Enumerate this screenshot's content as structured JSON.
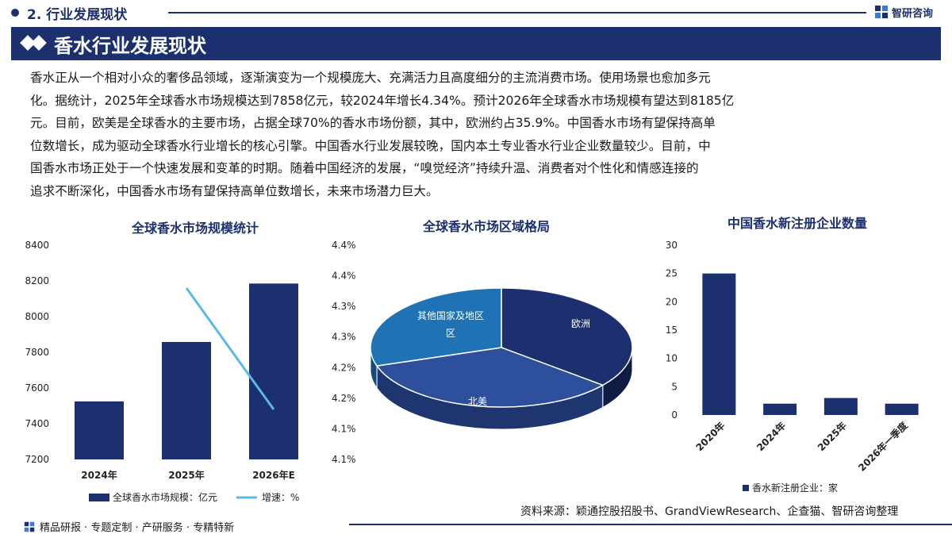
{
  "header": {
    "section": "2. 行业发展现状",
    "brand": "智研咨询",
    "title": "香水行业发展现状"
  },
  "paragraph_lines": [
    "香水正从一个相对小众的奢侈品领域，逐渐演变为一个规模庞大、充满活力且高度细分的主流消费市场。使用场景也愈加多元",
    "化。据统计，2025年全球香水市场规模达到7858亿元，较2024年增长4.34%。预计2026年全球香水市场规模有望达到8185亿",
    "元。目前，欧美是全球香水的主要市场，占据全球70%的香水市场份额，其中，欧洲约占35.9%。中国香水市场有望保持高单",
    "位数增长，成为驱动全球香水行业增长的核心引擎。中国香水行业发展较晚，国内本土专业香水行业企业数量较少。目前，中",
    "国香水市场正处于一个快速发展和变革的时期。随着中国经济的发展，“嗅觉经济”持续升温、消费者对个性化和情感连接的",
    "追求不断深化，中国香水市场有望保持高单位数增长，未来市场潜力巨大。"
  ],
  "chart_data": [
    {
      "type": "bar",
      "title": "全球香水市场规模统计",
      "categories": [
        "2024年",
        "2025年",
        "2026年E"
      ],
      "series": [
        {
          "name": "全球香水市场规模：亿元",
          "type": "bar",
          "axis": "left",
          "values": [
            7525,
            7858,
            8185
          ],
          "color": "#1c2f6e"
        },
        {
          "name": "增速：%",
          "type": "line",
          "axis": "right",
          "values": [
            null,
            4.34,
            4.17
          ],
          "color": "#5bb8e8"
        }
      ],
      "y_left": {
        "min": 7200,
        "max": 8400,
        "ticks": [
          "7200",
          "7400",
          "7600",
          "7800",
          "8000",
          "8200",
          "8400"
        ]
      },
      "y_right": {
        "min": 4.1,
        "max": 4.4,
        "ticks": [
          "4.1%",
          "4.1%",
          "4.2%",
          "4.2%",
          "4.3%",
          "4.3%",
          "4.4%",
          "4.4%"
        ]
      },
      "legend_position": "bottom"
    },
    {
      "type": "pie",
      "title": "全球香水市场区域格局",
      "labels": [
        "欧洲",
        "北美",
        "其他国家及地区"
      ],
      "label_lines": [
        [
          "欧洲"
        ],
        [
          "北美"
        ],
        [
          "其他国家及地区",
          "区"
        ]
      ],
      "values": [
        35.9,
        34.1,
        30.0
      ],
      "colors": [
        "#1c2f6e",
        "#2e4f9c",
        "#1f73b4"
      ]
    },
    {
      "type": "bar",
      "title": "中国香水新注册企业数量",
      "categories": [
        "2020年",
        "2024年",
        "2025年",
        "2026年一季度"
      ],
      "series": [
        {
          "name": "香水新注册企业：家",
          "values": [
            25,
            2,
            3,
            2
          ],
          "color": "#1c2f6e"
        }
      ],
      "y": {
        "min": 0,
        "max": 30,
        "ticks": [
          "0",
          "5",
          "10",
          "15",
          "20",
          "25",
          "30"
        ]
      },
      "legend_position": "bottom"
    }
  ],
  "footer": {
    "tagline": "精品研报 · 专题定制 · 产研服务 · 专精特新",
    "source": "资料来源：颖通控股招股书、GrandViewResearch、企查猫、智研咨询整理"
  }
}
